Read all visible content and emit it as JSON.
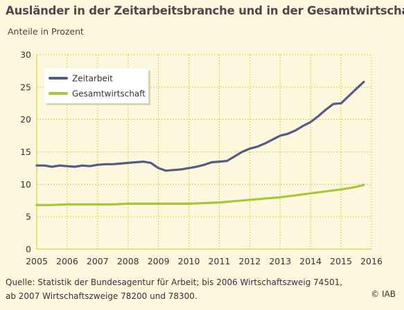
{
  "title": "Ausländer in der Zeitarbeitsbranche und in der Gesamtwirtschaft",
  "subtitle": "Anteile in Prozent",
  "source_line1": "Quelle: Statistik der Bundesagentur für Arbeit; bis 2006 Wirtschaftszweig 74501,",
  "source_line2": "ab 2007 Wirtschaftszweige 78200 und 78300.",
  "copyright": "© IAB",
  "colors": {
    "background": "#fdf7de",
    "grid": "#c6d84a",
    "legend_box": "#ffffff",
    "zeitarbeit": "#525c87",
    "gesamtwirtschaft": "#a8c63a"
  },
  "chart_data": {
    "type": "line",
    "title": "Ausländer in der Zeitarbeitsbranche und in der Gesamtwirtschaft",
    "ylabel": "Anteile in Prozent",
    "xlabel": "",
    "xlim": [
      2005,
      2016
    ],
    "ylim": [
      0,
      30
    ],
    "x_ticks": [
      "2005",
      "2006",
      "2007",
      "2008",
      "2009",
      "2010",
      "2011",
      "2012",
      "2013",
      "2014",
      "2015",
      "2016"
    ],
    "y_ticks": [
      "0",
      "5",
      "10",
      "15",
      "20",
      "25",
      "30"
    ],
    "grid": true,
    "legend_position": "top-left",
    "series": [
      {
        "name": "Zeitarbeit",
        "color": "#525c87",
        "x": [
          2005.0,
          2005.25,
          2005.5,
          2005.75,
          2006.0,
          2006.25,
          2006.5,
          2006.75,
          2007.0,
          2007.25,
          2007.5,
          2007.75,
          2008.0,
          2008.25,
          2008.5,
          2008.75,
          2009.0,
          2009.25,
          2009.5,
          2009.75,
          2010.0,
          2010.25,
          2010.5,
          2010.75,
          2011.0,
          2011.25,
          2011.5,
          2011.75,
          2012.0,
          2012.25,
          2012.5,
          2012.75,
          2013.0,
          2013.25,
          2013.5,
          2013.75,
          2014.0,
          2014.25,
          2014.5,
          2014.75,
          2015.0,
          2015.25,
          2015.5,
          2015.75
        ],
        "y": [
          12.9,
          12.9,
          12.7,
          12.9,
          12.8,
          12.7,
          12.9,
          12.8,
          13.0,
          13.1,
          13.1,
          13.2,
          13.3,
          13.4,
          13.5,
          13.3,
          12.5,
          12.1,
          12.2,
          12.3,
          12.5,
          12.7,
          13.0,
          13.4,
          13.5,
          13.6,
          14.3,
          15.0,
          15.5,
          15.8,
          16.3,
          16.9,
          17.5,
          17.8,
          18.3,
          19.0,
          19.6,
          20.5,
          21.5,
          22.4,
          22.5,
          23.6,
          24.7,
          25.8
        ]
      },
      {
        "name": "Gesamtwirtschaft",
        "color": "#a8c63a",
        "x": [
          2005.0,
          2005.5,
          2006.0,
          2006.5,
          2007.0,
          2007.5,
          2008.0,
          2008.5,
          2009.0,
          2009.5,
          2010.0,
          2010.5,
          2011.0,
          2011.5,
          2012.0,
          2012.5,
          2013.0,
          2013.5,
          2014.0,
          2014.5,
          2015.0,
          2015.5,
          2015.75
        ],
        "y": [
          6.8,
          6.8,
          6.9,
          6.9,
          6.9,
          6.9,
          7.0,
          7.0,
          7.0,
          7.0,
          7.0,
          7.1,
          7.2,
          7.4,
          7.6,
          7.8,
          8.0,
          8.3,
          8.6,
          8.9,
          9.2,
          9.6,
          9.9
        ]
      }
    ]
  }
}
